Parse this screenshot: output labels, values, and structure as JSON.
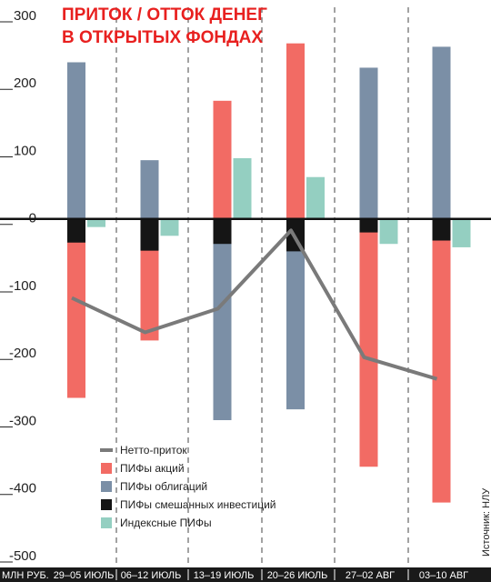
{
  "chart_data": {
    "type": "bar",
    "title_lines": [
      "ПРИТОК / ОТТОК ДЕНЕГ",
      "В ОТКРЫТЫХ ФОНДАХ"
    ],
    "unit_label": "МЛН РУБ.",
    "categories": [
      "29–05 ИЮЛЬ",
      "06–12 ИЮЛЬ",
      "13–19 ИЮЛЬ",
      "20–26 ИЮЛЬ",
      "27–02 АВГ",
      "03–10 АВГ"
    ],
    "ylim": [
      -500,
      300
    ],
    "yticks": [
      300,
      200,
      100,
      0,
      -100,
      -200,
      -300,
      -400,
      -500
    ],
    "series": [
      {
        "name": "ПИФы акций",
        "kind": "bar",
        "color": "#f26b64",
        "values": [
          -265,
          -180,
          175,
          260,
          -367,
          -420
        ]
      },
      {
        "name": "ПИФы облигаций",
        "kind": "bar",
        "color": "#7b8fa6",
        "values": [
          232,
          87,
          -298,
          -282,
          224,
          255
        ]
      },
      {
        "name": "ПИФы смешанных инвестиций",
        "kind": "bar",
        "color": "#151515",
        "values": [
          -35,
          -47,
          -37,
          -48,
          -20,
          -32
        ]
      },
      {
        "name": "Индексные ПИФы",
        "kind": "bar",
        "color": "#94cfc1",
        "values": [
          -12,
          -25,
          90,
          62,
          -37,
          -42
        ]
      },
      {
        "name": "Нетто-приток",
        "kind": "line",
        "color": "#7a7a7a",
        "values": [
          -117,
          -168,
          -133,
          -17,
          -205,
          -237
        ]
      }
    ],
    "legend_order": [
      "Нетто-приток",
      "ПИФы акций",
      "ПИФы облигаций",
      "ПИФы смешанных инвестиций",
      "Индексные ПИФы"
    ],
    "legend_position": "bottom-left",
    "source": "Источник: НЛУ",
    "grid": "vertical dashed separators between periods"
  }
}
